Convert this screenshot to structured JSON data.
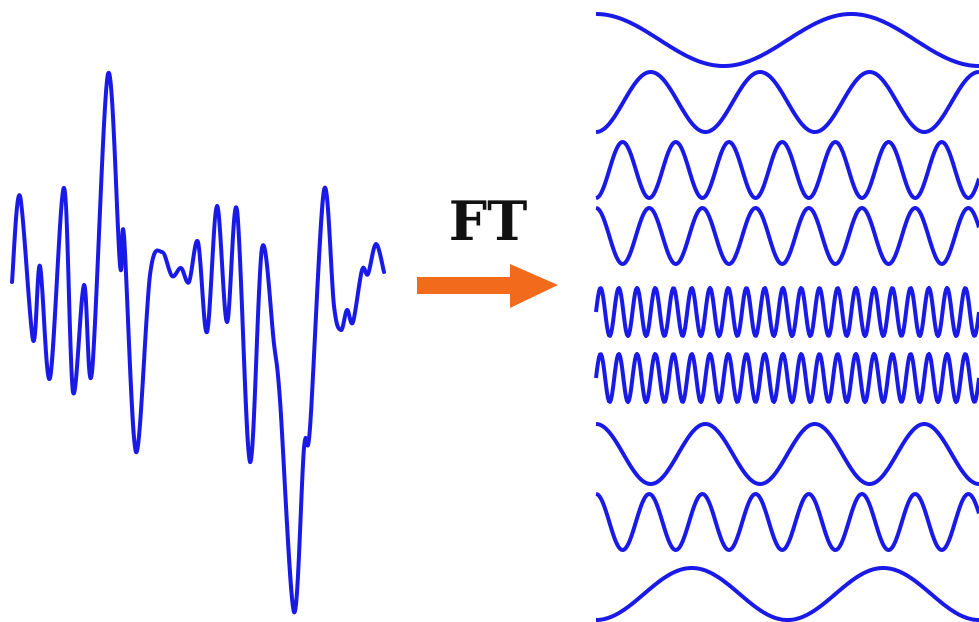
{
  "transform": {
    "label": "FT",
    "label_color": "#111111",
    "arrow_color": "#f26a1b",
    "arrow_icon": "right-arrow-icon"
  },
  "colors": {
    "signal": "#1a1ae8",
    "background": "#ffffff"
  },
  "waves": [
    {
      "id": "wave-1",
      "cycles": 1.5
    },
    {
      "id": "wave-2",
      "cycles": 3.5
    },
    {
      "id": "wave-3",
      "cycles": 7.2
    },
    {
      "id": "wave-4",
      "cycles": 7.2
    },
    {
      "id": "wave-5",
      "cycles": 21
    },
    {
      "id": "wave-6",
      "cycles": 21
    },
    {
      "id": "wave-7",
      "cycles": 3.5
    },
    {
      "id": "wave-8",
      "cycles": 7.2
    },
    {
      "id": "wave-9",
      "cycles": 2.0
    }
  ]
}
